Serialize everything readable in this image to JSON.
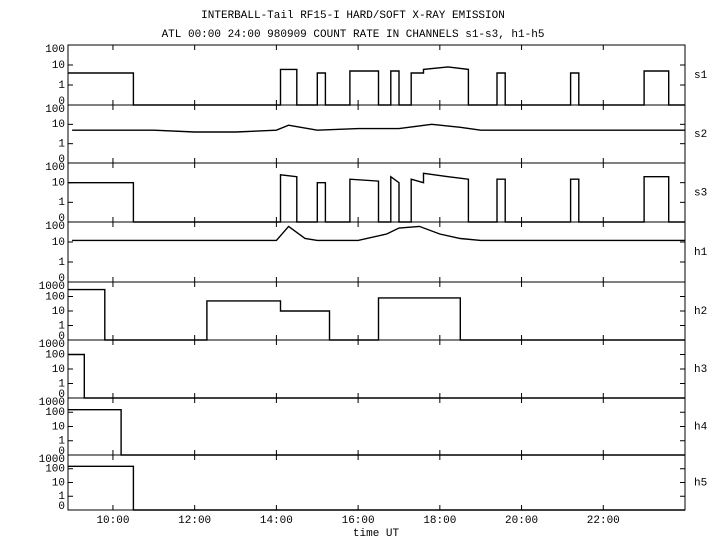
{
  "title": "INTERBALL-Tail RF15-I HARD/SOFT X-RAY EMISSION",
  "subtitle": "ATL 00:00 24:00 980909  COUNT RATE IN CHANNELS s1-s3, h1-h5",
  "xlabel": "time UT",
  "xlim": [
    8.9,
    24.0
  ],
  "xticks": [
    {
      "value": 10,
      "label": "10:00"
    },
    {
      "value": 12,
      "label": "12:00"
    },
    {
      "value": 14,
      "label": "14:00"
    },
    {
      "value": 16,
      "label": "16:00"
    },
    {
      "value": 18,
      "label": "18:00"
    },
    {
      "value": 20,
      "label": "20:00"
    },
    {
      "value": 22,
      "label": "22:00"
    }
  ],
  "chart_data": [
    {
      "type": "line",
      "label": "s1",
      "yscale": "symlog",
      "color": "#000000",
      "ylim": [
        0,
        100
      ],
      "yticks": [
        0,
        1,
        10,
        100
      ],
      "x": [
        8.9,
        10.5,
        10.5,
        14.1,
        14.1,
        14.5,
        14.5,
        15.0,
        15.0,
        15.2,
        15.2,
        15.8,
        15.8,
        16.5,
        16.5,
        16.8,
        16.8,
        17.0,
        17.0,
        17.3,
        17.3,
        17.6,
        17.6,
        18.2,
        18.7,
        18.7,
        19.4,
        19.4,
        19.6,
        19.6,
        21.2,
        21.2,
        21.4,
        21.4,
        23.0,
        23.0,
        23.6,
        23.6,
        24.0
      ],
      "values": [
        4,
        4,
        0,
        0,
        6,
        6,
        0,
        0,
        4,
        4,
        0,
        0,
        5,
        5,
        0,
        0,
        5,
        5,
        0,
        0,
        4,
        4,
        6,
        8,
        6,
        0,
        0,
        4,
        4,
        0,
        0,
        4,
        4,
        0,
        0,
        5,
        5,
        0,
        0
      ]
    },
    {
      "type": "line",
      "label": "s2",
      "yscale": "symlog",
      "color": "#000000",
      "ylim": [
        0,
        100
      ],
      "yticks": [
        0,
        1,
        10,
        100
      ],
      "x": [
        9,
        10,
        11,
        12,
        13,
        14,
        14.3,
        15,
        16,
        17,
        17.8,
        18.5,
        19,
        20,
        21,
        22,
        23,
        24
      ],
      "values": [
        5,
        5,
        5,
        4,
        4,
        5,
        9,
        5,
        6,
        6,
        10,
        7,
        5,
        5,
        5,
        5,
        5,
        5
      ]
    },
    {
      "type": "line",
      "label": "s3",
      "yscale": "symlog",
      "color": "#000000",
      "ylim": [
        0,
        100
      ],
      "yticks": [
        0,
        1,
        10,
        100
      ],
      "x": [
        8.9,
        10.5,
        10.5,
        14.1,
        14.1,
        14.5,
        14.5,
        15.0,
        15.0,
        15.2,
        15.2,
        15.8,
        15.8,
        16.5,
        16.5,
        16.8,
        16.8,
        17.0,
        17.0,
        17.3,
        17.3,
        17.6,
        17.6,
        18.2,
        18.7,
        18.7,
        19.4,
        19.4,
        19.6,
        19.6,
        21.2,
        21.2,
        21.4,
        21.4,
        23.0,
        23.0,
        23.6,
        23.6,
        24.0
      ],
      "values": [
        10,
        10,
        0,
        0,
        25,
        20,
        0,
        0,
        10,
        10,
        0,
        0,
        15,
        12,
        0,
        0,
        20,
        10,
        0,
        0,
        15,
        10,
        30,
        20,
        15,
        0,
        0,
        15,
        15,
        0,
        0,
        15,
        15,
        0,
        0,
        20,
        20,
        0,
        0
      ]
    },
    {
      "type": "line",
      "label": "h1",
      "yscale": "symlog",
      "color": "#000000",
      "ylim": [
        0,
        100
      ],
      "yticks": [
        0,
        1,
        10,
        100
      ],
      "x": [
        9,
        10,
        11,
        12,
        13,
        14,
        14.3,
        14.7,
        15,
        16,
        16.7,
        17,
        17.5,
        18,
        18.5,
        19,
        20,
        21,
        22,
        23,
        24
      ],
      "values": [
        12,
        12,
        12,
        12,
        12,
        12,
        60,
        15,
        12,
        12,
        25,
        50,
        60,
        25,
        15,
        12,
        12,
        12,
        12,
        12,
        12
      ]
    },
    {
      "type": "line",
      "label": "h2",
      "yscale": "symlog",
      "color": "#000000",
      "ylim": [
        0,
        1000
      ],
      "yticks": [
        0,
        1,
        10,
        100,
        1000
      ],
      "x": [
        8.9,
        9.8,
        9.8,
        12.3,
        12.3,
        14.1,
        14.1,
        15.3,
        15.3,
        16.5,
        16.5,
        18.5,
        18.5,
        24.0
      ],
      "values": [
        300,
        300,
        0,
        0,
        50,
        50,
        10,
        10,
        0,
        0,
        80,
        80,
        0,
        0
      ]
    },
    {
      "type": "line",
      "label": "h3",
      "yscale": "symlog",
      "color": "#000000",
      "ylim": [
        0,
        1000
      ],
      "yticks": [
        0,
        1,
        10,
        100,
        1000
      ],
      "x": [
        8.9,
        9.3,
        9.3,
        24.0
      ],
      "values": [
        100,
        100,
        0,
        0
      ]
    },
    {
      "type": "line",
      "label": "h4",
      "yscale": "symlog",
      "color": "#000000",
      "ylim": [
        0,
        1000
      ],
      "yticks": [
        0,
        1,
        10,
        100,
        1000
      ],
      "x": [
        8.9,
        10.2,
        10.2,
        24.0
      ],
      "values": [
        150,
        150,
        0,
        0
      ]
    },
    {
      "type": "line",
      "label": "h5",
      "yscale": "symlog",
      "color": "#000000",
      "ylim": [
        0,
        1000
      ],
      "yticks": [
        0,
        1,
        10,
        100,
        1000
      ],
      "x": [
        8.9,
        10.5,
        10.5,
        24.0
      ],
      "values": [
        150,
        150,
        0,
        0
      ]
    }
  ]
}
